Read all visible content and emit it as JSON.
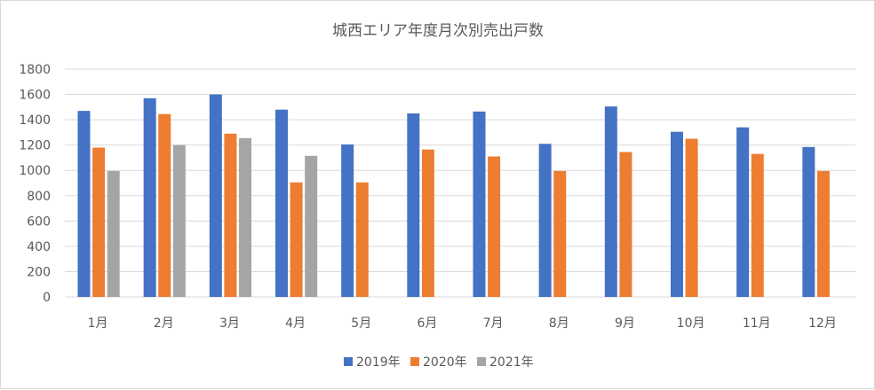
{
  "chart_data": {
    "type": "bar",
    "title": "城西エリア年度月次別売出戸数",
    "categories": [
      "1月",
      "2月",
      "3月",
      "4月",
      "5月",
      "6月",
      "7月",
      "8月",
      "9月",
      "10月",
      "11月",
      "12月"
    ],
    "series": [
      {
        "name": "2019年",
        "color": "#4472c4",
        "values": [
          1470,
          1570,
          1600,
          1480,
          1205,
          1450,
          1465,
          1210,
          1505,
          1305,
          1340,
          1185
        ]
      },
      {
        "name": "2020年",
        "color": "#ed7d31",
        "values": [
          1180,
          1445,
          1290,
          905,
          905,
          1165,
          1110,
          995,
          1145,
          1250,
          1130,
          995
        ]
      },
      {
        "name": "2021年",
        "color": "#a5a5a5",
        "values": [
          995,
          1200,
          1255,
          1115,
          null,
          null,
          null,
          null,
          null,
          null,
          null,
          null
        ]
      }
    ],
    "yticks": [
      "0",
      "200",
      "400",
      "600",
      "800",
      "1000",
      "1200",
      "1400",
      "1600",
      "1800"
    ],
    "ylim": [
      0,
      1800
    ],
    "grid": true,
    "legend_position": "bottom"
  }
}
